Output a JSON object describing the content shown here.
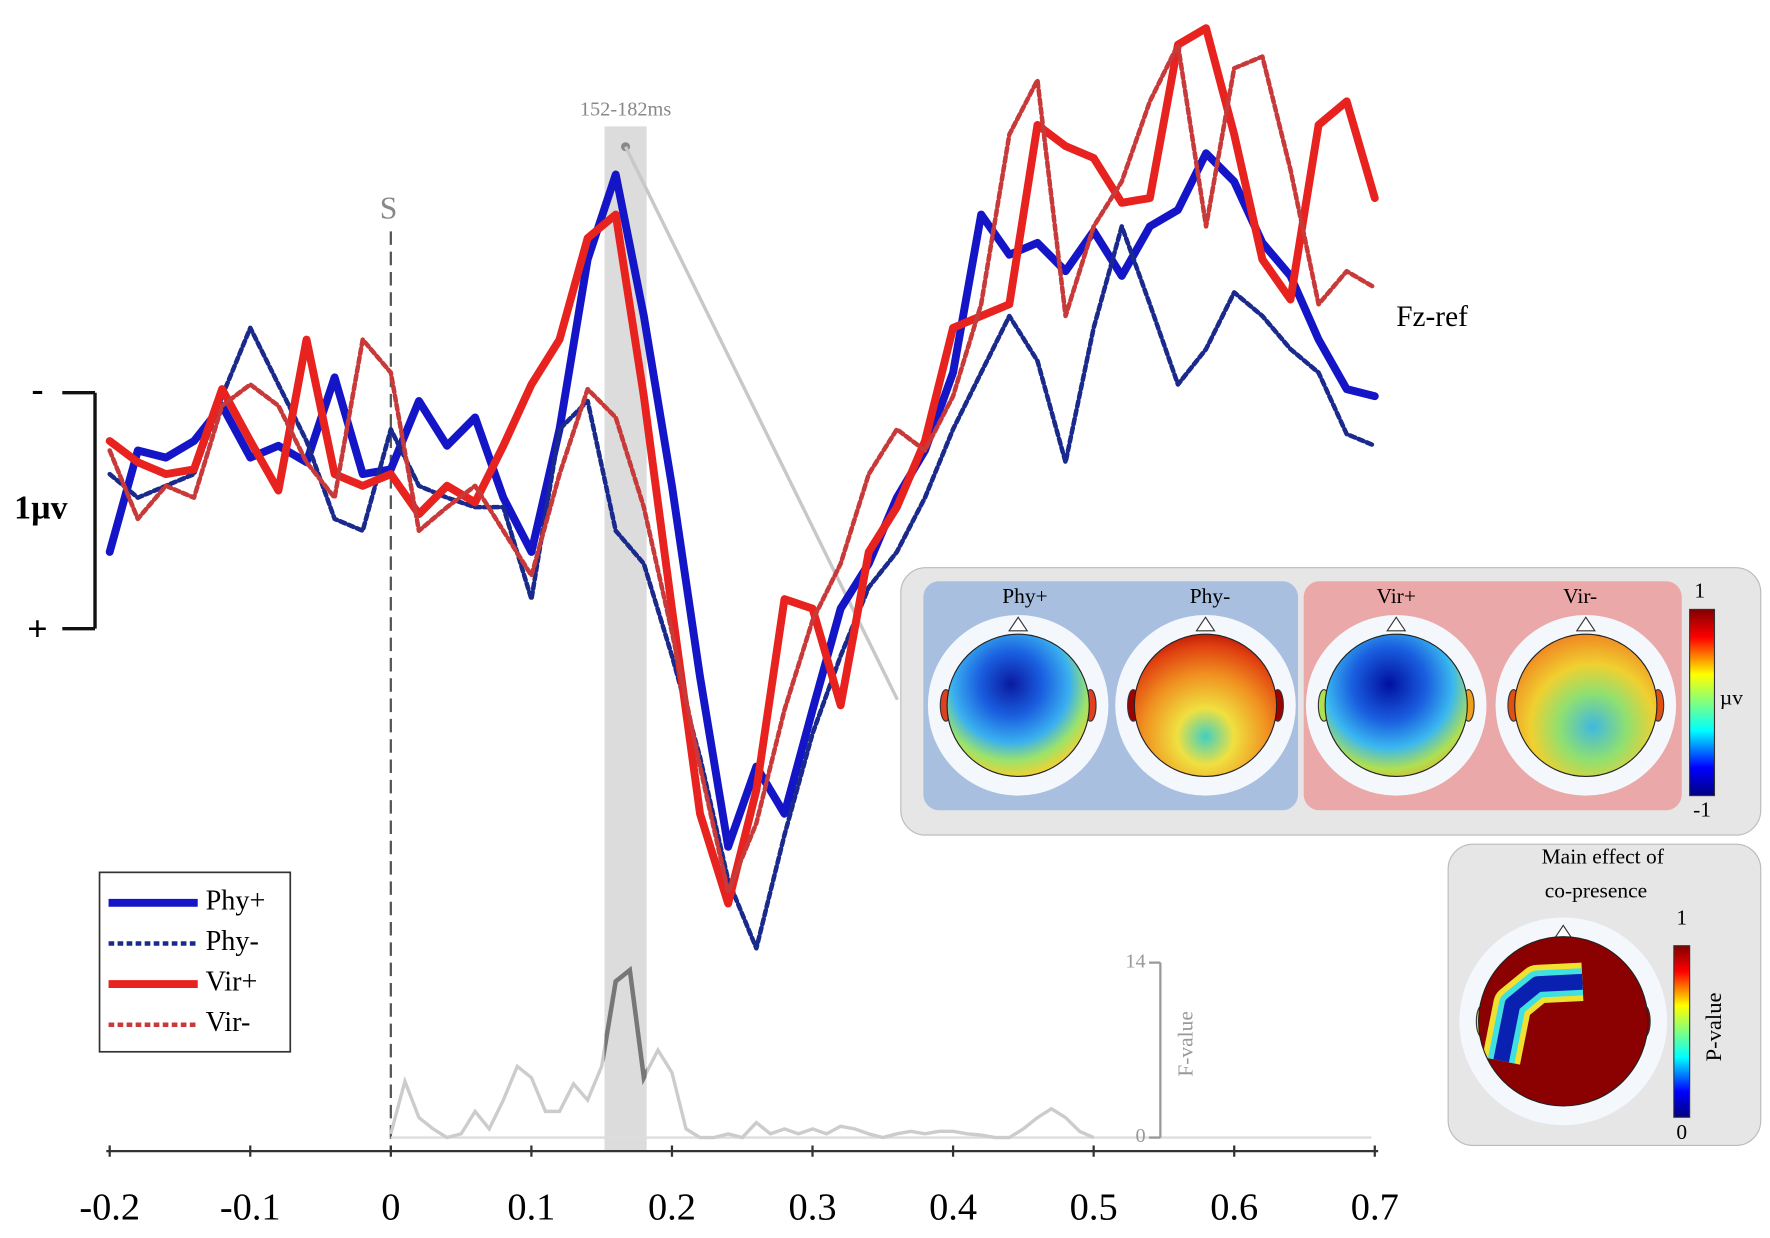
{
  "chart_data": {
    "type": "line",
    "xlim": [
      -0.2,
      0.7
    ],
    "xticks": [
      -0.2,
      -0.1,
      0,
      0.1,
      0.2,
      0.3,
      0.4,
      0.5,
      0.6,
      0.7
    ],
    "ylim": [
      -2,
      2.2
    ],
    "y_inverted": true,
    "x": [
      -0.2,
      -0.18,
      -0.16,
      -0.14,
      -0.12,
      -0.1,
      -0.08,
      -0.06,
      -0.04,
      -0.02,
      0,
      0.02,
      0.04,
      0.06,
      0.08,
      0.1,
      0.12,
      0.14,
      0.16,
      0.18,
      0.2,
      0.22,
      0.24,
      0.26,
      0.28,
      0.3,
      0.32,
      0.34,
      0.36,
      0.38,
      0.4,
      0.42,
      0.44,
      0.46,
      0.48,
      0.5,
      0.52,
      0.54,
      0.56,
      0.58,
      0.6,
      0.62,
      0.64,
      0.66,
      0.68,
      0.7
    ],
    "series": [
      {
        "name": "Phy+",
        "color": "#1515c8",
        "style": "solid",
        "values": [
          0.33,
          -0.1,
          -0.07,
          -0.14,
          -0.29,
          -0.07,
          -0.12,
          -0.05,
          -0.41,
          0,
          -0.02,
          -0.31,
          -0.12,
          -0.24,
          0.1,
          0.33,
          -0.19,
          -0.91,
          -1.27,
          -0.67,
          0.05,
          0.86,
          1.58,
          1.24,
          1.44,
          1.0,
          0.57,
          0.38,
          0.1,
          -0.1,
          -0.43,
          -1.1,
          -0.93,
          -0.98,
          -0.86,
          -1.03,
          -0.84,
          -1.05,
          -1.12,
          -1.36,
          -1.24,
          -0.98,
          -0.84,
          -0.57,
          -0.36,
          -0.33
        ]
      },
      {
        "name": "Phy-",
        "color": "#1a2a8c",
        "style": "dotted",
        "values": [
          0,
          0.1,
          0.05,
          0,
          -0.33,
          -0.62,
          -0.38,
          -0.14,
          0.19,
          0.24,
          -0.19,
          0.05,
          0.1,
          0.14,
          0.14,
          0.53,
          -0.19,
          -0.31,
          0.24,
          0.38,
          0.77,
          1.2,
          1.72,
          2.01,
          1.53,
          1.1,
          0.77,
          0.48,
          0.33,
          0.1,
          -0.19,
          -0.43,
          -0.67,
          -0.48,
          -0.05,
          -0.62,
          -1.05,
          -0.72,
          -0.38,
          -0.53,
          -0.77,
          -0.67,
          -0.53,
          -0.43,
          -0.17,
          -0.12
        ]
      },
      {
        "name": "Vir+",
        "color": "#e8221e",
        "style": "solid",
        "values": [
          -0.14,
          -0.05,
          0,
          -0.02,
          -0.36,
          -0.14,
          0.07,
          -0.57,
          0,
          0.05,
          0,
          0.17,
          0.05,
          0.12,
          -0.12,
          -0.38,
          -0.57,
          -1.0,
          -1.1,
          -0.33,
          0.57,
          1.44,
          1.82,
          1.34,
          0.53,
          0.57,
          0.98,
          0.33,
          0.14,
          -0.14,
          -0.62,
          -0.67,
          -0.72,
          -1.48,
          -1.39,
          -1.34,
          -1.15,
          -1.17,
          -1.82,
          -1.89,
          -1.44,
          -0.91,
          -0.74,
          -1.48,
          -1.58,
          -1.17
        ]
      },
      {
        "name": "Vir-",
        "color": "#c83a3a",
        "style": "dotted",
        "values": [
          -0.1,
          0.19,
          0.05,
          0.1,
          -0.29,
          -0.38,
          -0.29,
          -0.05,
          0.1,
          -0.57,
          -0.43,
          0.24,
          0.14,
          0.05,
          0.24,
          0.43,
          0,
          -0.36,
          -0.24,
          0.14,
          0.67,
          1.24,
          1.77,
          1.48,
          1.0,
          0.62,
          0.38,
          0,
          -0.19,
          -0.1,
          -0.33,
          -0.72,
          -1.44,
          -1.67,
          -0.67,
          -1.05,
          -1.24,
          -1.58,
          -1.82,
          -1.05,
          -1.72,
          -1.77,
          -1.29,
          -0.72,
          -0.86,
          -0.79
        ]
      }
    ],
    "scale_bar": {
      "value": 1,
      "label": "1µv",
      "minus": "-",
      "plus": "+"
    },
    "stimulus": {
      "x": 0,
      "label": "S"
    },
    "window": {
      "range": [
        0.152,
        0.182
      ],
      "label": "152-182ms"
    },
    "channel_label": "Fz-ref",
    "f_value": {
      "label": "F-value",
      "ylim": [
        0,
        14
      ],
      "yticks": [
        0,
        14
      ],
      "color": "#cccccc",
      "highlight_color": "#777777",
      "x": [
        0,
        0.01,
        0.02,
        0.03,
        0.04,
        0.05,
        0.06,
        0.07,
        0.08,
        0.09,
        0.1,
        0.11,
        0.12,
        0.13,
        0.14,
        0.15,
        0.16,
        0.17,
        0.18,
        0.19,
        0.2,
        0.21,
        0.22,
        0.23,
        0.24,
        0.25,
        0.26,
        0.27,
        0.28,
        0.29,
        0.3,
        0.31,
        0.32,
        0.33,
        0.34,
        0.35,
        0.36,
        0.37,
        0.38,
        0.39,
        0.4,
        0.41,
        0.42,
        0.43,
        0.44,
        0.45,
        0.46,
        0.47,
        0.48,
        0.49,
        0.5
      ],
      "values": [
        0.3,
        4.5,
        1.6,
        0.7,
        0,
        0.3,
        2.1,
        0.7,
        3.0,
        5.7,
        4.8,
        2.1,
        2.1,
        4.3,
        3.0,
        5.7,
        12.5,
        13.4,
        4.8,
        7.0,
        5.2,
        0.7,
        0,
        0,
        0.3,
        0,
        1.2,
        0.3,
        0.7,
        0.3,
        0.7,
        0.3,
        0.9,
        0.7,
        0.3,
        0,
        0.3,
        0.5,
        0.3,
        0.5,
        0.5,
        0.3,
        0.2,
        0,
        0,
        0.7,
        1.6,
        2.3,
        1.6,
        0.5,
        0
      ]
    }
  },
  "topomaps": {
    "labels": [
      "Phy+",
      "Phy-",
      "Vir+",
      "Vir-"
    ],
    "colorbar": {
      "max": 1,
      "min": -1,
      "unit": "µv"
    }
  },
  "main_effect": {
    "title": [
      "Main effect of",
      "co-presence"
    ],
    "colorbar": {
      "max": 1,
      "min": 0,
      "label": "P-value"
    }
  }
}
